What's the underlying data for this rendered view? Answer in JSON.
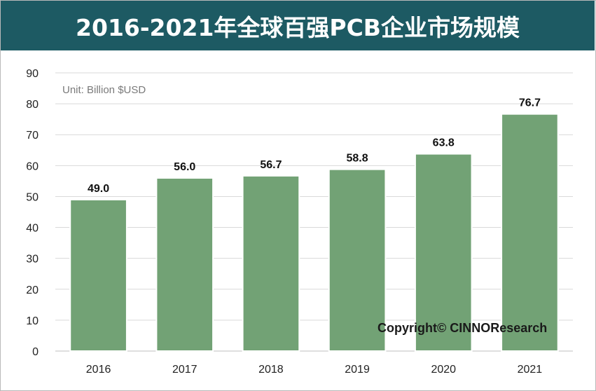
{
  "colors": {
    "title_bg": "#1d5a63",
    "bar": "#72a275",
    "grid": "#d9d9d9"
  },
  "chart_data": {
    "type": "bar",
    "title": "2016-2021年全球百强PCB企业市场规模",
    "unit_note": "Unit: Billion $USD",
    "categories": [
      "2016",
      "2017",
      "2018",
      "2019",
      "2020",
      "2021"
    ],
    "values": [
      49.0,
      56.0,
      56.7,
      58.8,
      63.8,
      76.7
    ],
    "value_labels": [
      "49.0",
      "56.0",
      "56.7",
      "58.8",
      "63.8",
      "76.7"
    ],
    "ylim": [
      0,
      90
    ],
    "yticks": [
      0,
      10,
      20,
      30,
      40,
      50,
      60,
      70,
      80,
      90
    ],
    "grid": true,
    "xlabel": "",
    "ylabel": ""
  },
  "watermark": "Copyright© CINNOResearch"
}
